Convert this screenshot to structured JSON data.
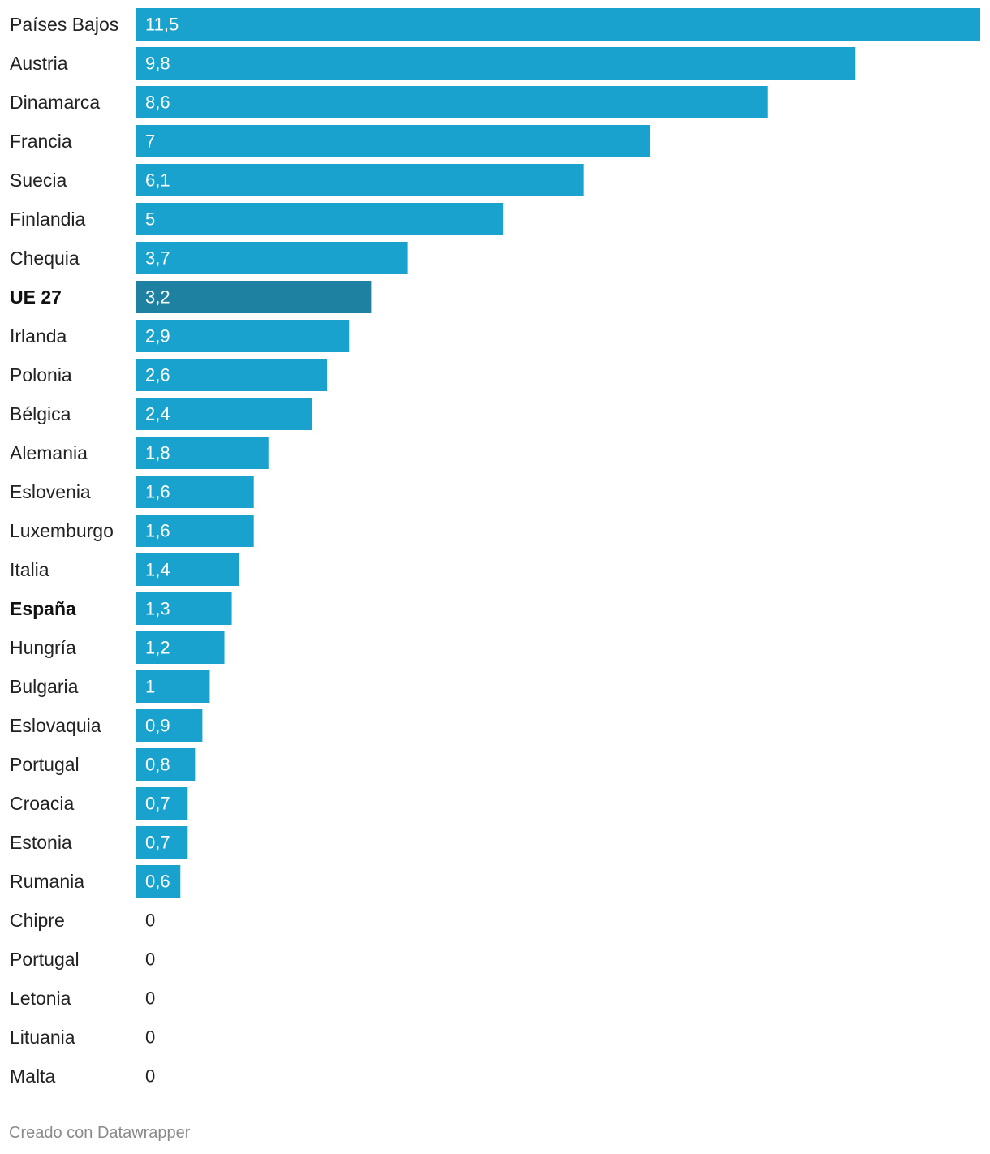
{
  "chart_data": {
    "type": "bar",
    "orientation": "horizontal",
    "categories": [
      "Países Bajos",
      "Austria",
      "Dinamarca",
      "Francia",
      "Suecia",
      "Finlandia",
      "Chequia",
      "UE 27",
      "Irlanda",
      "Polonia",
      "Bélgica",
      "Alemania",
      "Eslovenia",
      "Luxemburgo",
      "Italia",
      "España",
      "Hungría",
      "Bulgaria",
      "Eslovaquia",
      "Portugal",
      "Croacia",
      "Estonia",
      "Rumania",
      "Chipre",
      "Portugal",
      "Letonia",
      "Lituania",
      "Malta"
    ],
    "values": [
      11.5,
      9.8,
      8.6,
      7,
      6.1,
      5,
      3.7,
      3.2,
      2.9,
      2.6,
      2.4,
      1.8,
      1.6,
      1.6,
      1.4,
      1.3,
      1.2,
      1,
      0.9,
      0.8,
      0.7,
      0.7,
      0.6,
      0,
      0,
      0,
      0,
      0
    ],
    "value_labels": [
      "11,5",
      "9,8",
      "8,6",
      "7",
      "6,1",
      "5",
      "3,7",
      "3,2",
      "2,9",
      "2,6",
      "2,4",
      "1,8",
      "1,6",
      "1,6",
      "1,4",
      "1,3",
      "1,2",
      "1",
      "0,9",
      "0,8",
      "0,7",
      "0,7",
      "0,6",
      "0",
      "0",
      "0",
      "0",
      "0"
    ],
    "highlighted": [
      "UE 27",
      "España"
    ],
    "bold_labels": [
      "UE 27",
      "España"
    ],
    "xlim": [
      0,
      11.5
    ],
    "title": "",
    "xlabel": "",
    "ylabel": "",
    "grid": false,
    "colors": {
      "bar": "#19a2ce",
      "bar_highlight": "#1f81a1",
      "label_inside": "#ffffff",
      "label_outside": "#222222"
    }
  },
  "footer": {
    "credit": "Creado con Datawrapper"
  }
}
